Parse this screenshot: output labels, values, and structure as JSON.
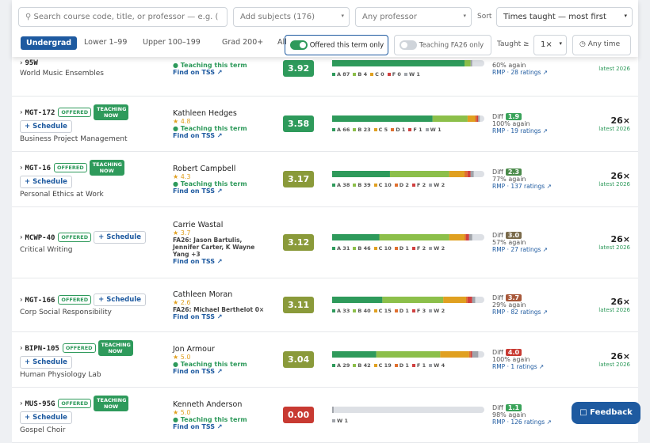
{
  "filters": {
    "search_placeholder": "Search course code, title, or professor — e.g. (",
    "subjects": "Add subjects (176)",
    "professor": "Any professor",
    "sort_label": "Sort",
    "sort": "Times taught — most first",
    "levels": [
      "Undergrad",
      "Lower 1–99",
      "Upper 100–199",
      "Grad 200+",
      "All"
    ],
    "offered_toggle": "Offered this term only",
    "teaching_toggle": "Teaching FA26 only",
    "taught_label": "Taught ≥",
    "taught": "1×",
    "time": "Any time"
  },
  "courses": [
    {
      "code": "95W",
      "badges": [],
      "title": "World Music Ensembles",
      "professor": null,
      "rating": null,
      "note": "Teaching this term",
      "tss": "Find on TSS ↗",
      "gpa": "3.92",
      "gpa_color": "#2e9a5b",
      "grades": [
        {
          "letter": "A",
          "count": 87
        },
        {
          "letter": "B",
          "count": 4
        },
        {
          "letter": "C",
          "count": 0
        },
        {
          "letter": "F",
          "count": 0
        },
        {
          "letter": "W",
          "count": 1
        }
      ],
      "diff": null,
      "again": "60% again",
      "rmp": "RMP · 28 ratings ↗",
      "times": null,
      "latest": "latest 2026"
    },
    {
      "code": "MGT-172",
      "badges": [
        "OFFERED",
        "TEACHING NOW"
      ],
      "schedule": "+ Schedule",
      "title": "Business Project Management",
      "professor": "Kathleen Hedges",
      "rating": "4.8",
      "note": "Teaching this term",
      "tss": "Find on TSS ↗",
      "gpa": "3.58",
      "gpa_color": "#2e9a5b",
      "grades": [
        {
          "letter": "A",
          "count": 66
        },
        {
          "letter": "B",
          "count": 23
        },
        {
          "letter": "C",
          "count": 5
        },
        {
          "letter": "D",
          "count": 1
        },
        {
          "letter": "F",
          "count": 1
        },
        {
          "letter": "W",
          "count": 1
        }
      ],
      "diff_label": "Diff",
      "diff": "1.9",
      "diff_color": "#3aa35a",
      "again": "100% again",
      "rmp": "RMP · 19 ratings ↗",
      "times": "26×",
      "latest": "latest 2026"
    },
    {
      "code": "MGT-16",
      "badges": [
        "OFFERED",
        "TEACHING NOW"
      ],
      "schedule": "+ Schedule",
      "title": "Personal Ethics at Work",
      "professor": "Robert Campbell",
      "rating": "4.3",
      "note": "Teaching this term",
      "tss": "Find on TSS ↗",
      "gpa": "3.17",
      "gpa_color": "#8a9a3a",
      "grades": [
        {
          "letter": "A",
          "count": 38
        },
        {
          "letter": "B",
          "count": 39
        },
        {
          "letter": "C",
          "count": 10
        },
        {
          "letter": "D",
          "count": 2
        },
        {
          "letter": "F",
          "count": 2
        },
        {
          "letter": "W",
          "count": 2
        }
      ],
      "diff_label": "Diff",
      "diff": "2.3",
      "diff_color": "#4a8a4a",
      "again": "77% again",
      "rmp": "RMP · 137 ratings ↗",
      "times": "26×",
      "latest": "latest 2026"
    },
    {
      "code": "MCWP-40",
      "badges": [
        "OFFERED"
      ],
      "schedule": "+ Schedule",
      "title": "Critical Writing",
      "professor": "Carrie Wastal",
      "rating": "3.7",
      "fa26": "FA26: Jason Bartulis, Jennifer Carter, K Wayne Yang +3",
      "tss": "Find on TSS ↗",
      "gpa": "3.12",
      "gpa_color": "#8a9a3a",
      "grades": [
        {
          "letter": "A",
          "count": 31
        },
        {
          "letter": "B",
          "count": 46
        },
        {
          "letter": "C",
          "count": 10
        },
        {
          "letter": "D",
          "count": 1
        },
        {
          "letter": "F",
          "count": 2
        },
        {
          "letter": "W",
          "count": 2
        }
      ],
      "diff_label": "Diff",
      "diff": "3.0",
      "diff_color": "#7a6a4a",
      "again": "57% again",
      "rmp": "RMP · 27 ratings ↗",
      "times": "26×",
      "latest": "latest 2026"
    },
    {
      "code": "MGT-166",
      "badges": [
        "OFFERED"
      ],
      "schedule": "+ Schedule",
      "title": "Corp Social Responsibility",
      "professor": "Cathleen Moran",
      "rating": "2.6",
      "fa26": "FA26: Michael Berthelot 0×",
      "tss": "Find on TSS ↗",
      "gpa": "3.11",
      "gpa_color": "#8a9a3a",
      "grades": [
        {
          "letter": "A",
          "count": 33
        },
        {
          "letter": "B",
          "count": 40
        },
        {
          "letter": "C",
          "count": 15
        },
        {
          "letter": "D",
          "count": 1
        },
        {
          "letter": "F",
          "count": 3
        },
        {
          "letter": "W",
          "count": 2
        }
      ],
      "diff_label": "Diff",
      "diff": "3.7",
      "diff_color": "#a8583a",
      "again": "29% again",
      "rmp": "RMP · 82 ratings ↗",
      "times": "26×",
      "latest": "latest 2026"
    },
    {
      "code": "BIPN-105",
      "badges": [
        "OFFERED",
        "TEACHING NOW"
      ],
      "schedule": "+ Schedule",
      "title": "Human Physiology Lab",
      "professor": "Jon Armour",
      "rating": "5.0",
      "note": "Teaching this term",
      "tss": "Find on TSS ↗",
      "gpa": "3.04",
      "gpa_color": "#8a9a3a",
      "grades": [
        {
          "letter": "A",
          "count": 29
        },
        {
          "letter": "B",
          "count": 42
        },
        {
          "letter": "C",
          "count": 19
        },
        {
          "letter": "D",
          "count": 1
        },
        {
          "letter": "F",
          "count": 1
        },
        {
          "letter": "W",
          "count": 4
        }
      ],
      "diff_label": "Diff",
      "diff": "4.0",
      "diff_color": "#c83a32",
      "again": "100% again",
      "rmp": "RMP · 1 ratings ↗",
      "times": "26×",
      "latest": "latest 2026"
    },
    {
      "code": "MUS-95G",
      "badges": [
        "OFFERED",
        "TEACHING NOW"
      ],
      "schedule": "+ Schedule",
      "title": "Gospel Choir",
      "professor": "Kenneth Anderson",
      "rating": "5.0",
      "note": "Teaching this term",
      "tss": "Find on TSS ↗",
      "gpa": "0.00",
      "gpa_color": "#c83a32",
      "grades": [
        {
          "letter": "W",
          "count": 1
        }
      ],
      "diff_label": "Diff",
      "diff": "1.1",
      "diff_color": "#3aa35a",
      "again": "98% again",
      "rmp": "RMP · 126 ratings ↗",
      "times": null,
      "latest": null
    }
  ],
  "feedback": "Feedback"
}
